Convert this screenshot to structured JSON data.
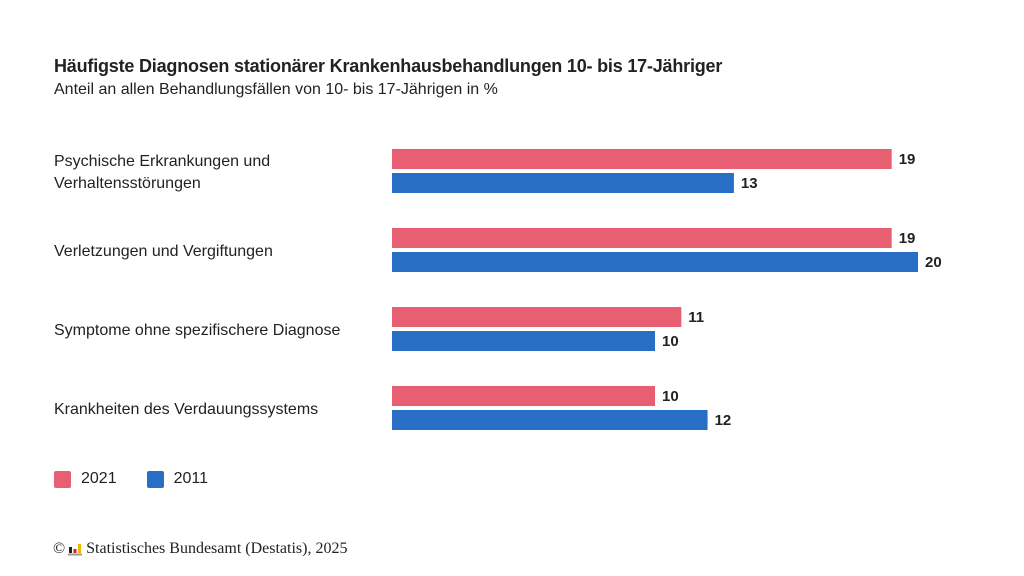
{
  "chart_data": {
    "type": "bar",
    "orientation": "horizontal",
    "title": "Häufigste Diagnosen stationärer Krankenhausbehandlungen 10- bis 17-Jähriger",
    "subtitle": "Anteil an allen Behandlungsfällen von 10- bis 17-Jährigen in %",
    "categories": [
      [
        "Psychische Erkrankungen und",
        "Verhaltensstörungen"
      ],
      [
        "Verletzungen und Vergiftungen"
      ],
      [
        "Symptome ohne spezifischere Diagnose"
      ],
      [
        "Krankheiten des Verdauungssystems"
      ]
    ],
    "series": [
      {
        "name": "2021",
        "color": "#e85f73",
        "values": [
          19,
          19,
          11,
          10
        ]
      },
      {
        "name": "2011",
        "color": "#276ec4",
        "values": [
          13,
          20,
          10,
          12
        ]
      }
    ],
    "xlabel": "",
    "ylabel": "",
    "xlim": [
      0,
      20
    ],
    "grid": false,
    "legend_position": "bottom-left"
  },
  "footer": {
    "copyright_symbol": "©",
    "source": "Statistisches Bundesamt (Destatis), 2025"
  }
}
